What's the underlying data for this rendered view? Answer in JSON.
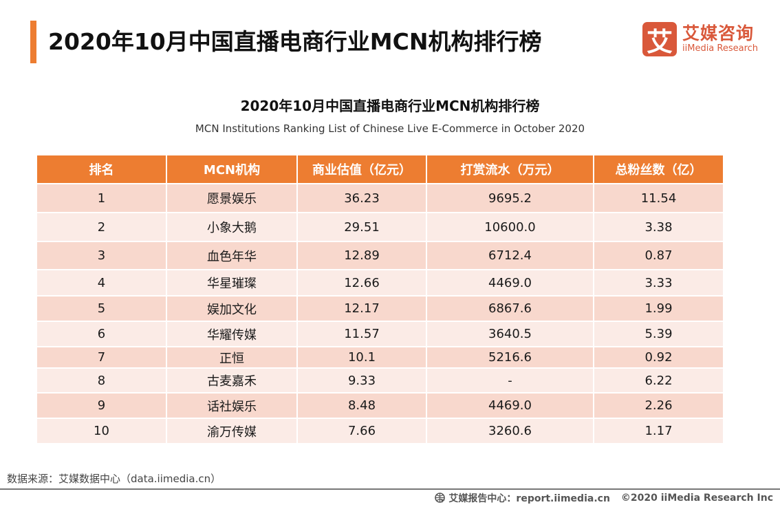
{
  "header": {
    "title": "2020年10月中国直播电商行业MCN机构排行榜",
    "accent": "#ED7D31"
  },
  "logo": {
    "mark": "艾",
    "cn": "艾媒咨询",
    "en": "iiMedia Research",
    "color": "#D9583A"
  },
  "chart_data": {
    "type": "table",
    "title": "2020年10月中国直播电商行业MCN机构排行榜",
    "subtitle": "MCN Institutions Ranking List of Chinese Live E-Commerce in October 2020",
    "columns": [
      "排名",
      "MCN机构",
      "商业估值（亿元）",
      "打赏流水（万元）",
      "总粉丝数（亿）"
    ],
    "rows": [
      [
        "1",
        "愿景娱乐",
        "36.23",
        "9695.2",
        "11.54"
      ],
      [
        "2",
        "小象大鹅",
        "29.51",
        "10600.0",
        "3.38"
      ],
      [
        "3",
        "血色年华",
        "12.89",
        "6712.4",
        "0.87"
      ],
      [
        "4",
        "华星璀璨",
        "12.66",
        "4469.0",
        "3.33"
      ],
      [
        "5",
        "娱加文化",
        "12.17",
        "6867.6",
        "1.99"
      ],
      [
        "6",
        "华耀传媒",
        "11.57",
        "3640.5",
        "5.39"
      ],
      [
        "7",
        "正恒",
        "10.1",
        "5216.6",
        "0.92"
      ],
      [
        "8",
        "古麦嘉禾",
        "9.33",
        "-",
        "6.22"
      ],
      [
        "9",
        "话社娱乐",
        "8.48",
        "4469.0",
        "2.26"
      ],
      [
        "10",
        "渝万传媒",
        "7.66",
        "3260.6",
        "1.17"
      ]
    ],
    "header_color": "#ED7D31",
    "row_colors": [
      "#F8D8CD",
      "#FBEBE6"
    ]
  },
  "footer": {
    "source": "数据来源：艾媒数据中心（data.iimedia.cn）",
    "report": "艾媒报告中心：report.iimedia.cn",
    "copyright": "©2020  iiMedia Research  Inc",
    "icon": "globe-cursor-icon"
  }
}
